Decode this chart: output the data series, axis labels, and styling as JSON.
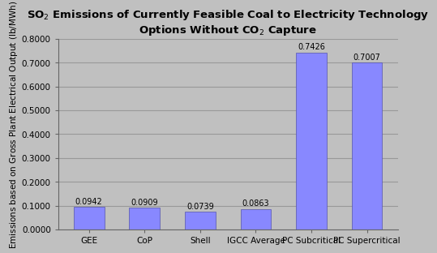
{
  "categories": [
    "GEE",
    "CoP",
    "Shell",
    "IGCC Average",
    "PC Subcritical",
    "PC Supercritical"
  ],
  "values": [
    0.0942,
    0.0909,
    0.0739,
    0.0863,
    0.7426,
    0.7007
  ],
  "value_labels": [
    "0.0942",
    "0.0909",
    "0.0739",
    "0.0863",
    "0.7426",
    "0.7007"
  ],
  "bar_color": "#8888FF",
  "bar_edge_color": "#5555AA",
  "title_line1": "SO$_2$ Emissions of Currently Feasible Coal to Electricity Technology",
  "title_line2": "Options Without CO$_2$ Capture",
  "ylabel": "SO$_2$ Emissions based on Gross Plant Electrical Output (lb/MWh)",
  "ylim": [
    0,
    0.8
  ],
  "yticks": [
    0.0,
    0.1,
    0.2,
    0.3,
    0.4,
    0.5,
    0.6,
    0.7,
    0.8
  ],
  "ytick_labels": [
    "0.0000",
    "0.1000",
    "0.2000",
    "0.3000",
    "0.4000",
    "0.5000",
    "0.6000",
    "0.7000",
    "0.8000"
  ],
  "background_color": "#C0C0C0",
  "plot_bg_color": "#C0C0C0",
  "grid_color": "#999999",
  "title_fontsize": 9.5,
  "label_fontsize": 7.5,
  "tick_fontsize": 7.5,
  "value_label_fontsize": 7.0
}
